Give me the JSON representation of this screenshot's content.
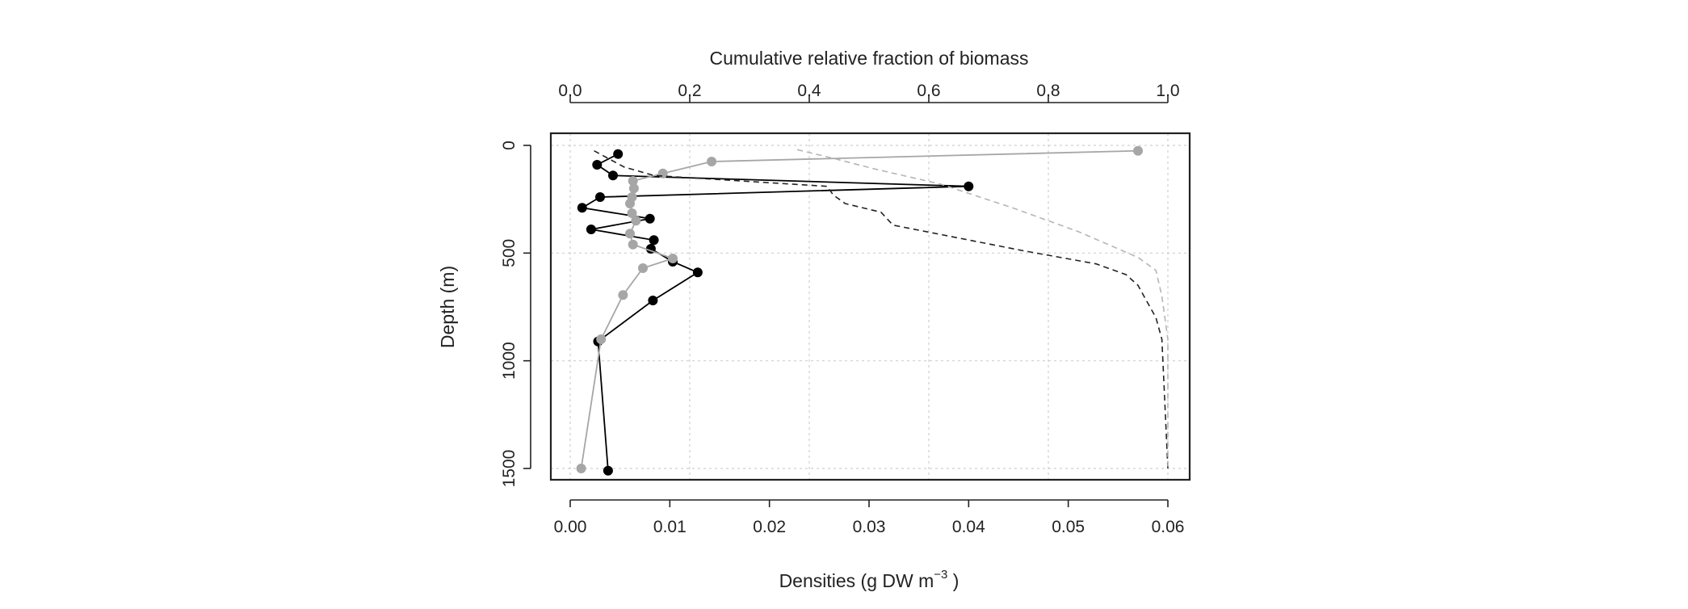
{
  "chart_data": {
    "type": "line",
    "title": "",
    "top_axis": {
      "label": "Cumulative relative fraction of biomass",
      "range": [
        0,
        1
      ],
      "ticks": [
        0.0,
        0.2,
        0.4,
        0.6,
        0.8,
        1.0
      ],
      "tick_labels": [
        "0.0",
        "0.2",
        "0.4",
        "0.6",
        "0.8",
        "1.0"
      ]
    },
    "bottom_axis": {
      "label_main": "Densities (g DW  m",
      "label_sup": "−3",
      "label_end": " )",
      "range": [
        0,
        0.06
      ],
      "ticks": [
        0.0,
        0.01,
        0.02,
        0.03,
        0.04,
        0.05,
        0.06
      ],
      "tick_labels": [
        "0.00",
        "0.01",
        "0.02",
        "0.03",
        "0.04",
        "0.05",
        "0.06"
      ]
    },
    "left_axis": {
      "label": "Depth (m)",
      "range": [
        0,
        1500
      ],
      "reversed": true,
      "ticks": [
        0,
        500,
        1000,
        1500
      ],
      "tick_labels": [
        "0",
        "500",
        "1000",
        "1500"
      ]
    },
    "grid": true,
    "series": [
      {
        "style": "density-black",
        "color": "#000000",
        "markers": true,
        "axis": "bottom",
        "points": [
          [
            0.0048,
            40
          ],
          [
            0.0027,
            90
          ],
          [
            0.0043,
            140
          ],
          [
            0.04,
            190
          ],
          [
            0.003,
            240
          ],
          [
            0.0012,
            290
          ],
          [
            0.008,
            340
          ],
          [
            0.0021,
            390
          ],
          [
            0.0084,
            440
          ],
          [
            0.0081,
            480
          ],
          [
            0.0103,
            540
          ],
          [
            0.0128,
            590
          ],
          [
            0.0083,
            720
          ],
          [
            0.0028,
            910
          ],
          [
            0.0038,
            1510
          ]
        ]
      },
      {
        "style": "density-grey",
        "color": "#a6a6a6",
        "markers": true,
        "axis": "bottom",
        "points": [
          [
            0.057,
            25
          ],
          [
            0.0142,
            75
          ],
          [
            0.0093,
            130
          ],
          [
            0.0063,
            165
          ],
          [
            0.0064,
            200
          ],
          [
            0.0062,
            240
          ],
          [
            0.006,
            270
          ],
          [
            0.0062,
            315
          ],
          [
            0.0066,
            350
          ],
          [
            0.006,
            410
          ],
          [
            0.0063,
            460
          ],
          [
            0.0103,
            525
          ],
          [
            0.0073,
            570
          ],
          [
            0.0053,
            695
          ],
          [
            0.0031,
            900
          ],
          [
            0.0011,
            1500
          ]
        ]
      },
      {
        "style": "cumulative-black-dashed",
        "color": "#222222",
        "markers": false,
        "axis": "top",
        "points": [
          [
            0.04,
            25
          ],
          [
            0.09,
            100
          ],
          [
            0.14,
            140
          ],
          [
            0.43,
            190
          ],
          [
            0.44,
            230
          ],
          [
            0.46,
            270
          ],
          [
            0.52,
            310
          ],
          [
            0.54,
            370
          ],
          [
            0.65,
            430
          ],
          [
            0.76,
            490
          ],
          [
            0.88,
            550
          ],
          [
            0.93,
            600
          ],
          [
            0.95,
            650
          ],
          [
            0.96,
            700
          ],
          [
            0.98,
            800
          ],
          [
            0.99,
            900
          ],
          [
            1.0,
            1500
          ]
        ]
      },
      {
        "style": "cumulative-grey-dashed",
        "color": "#b5b5b5",
        "markers": false,
        "axis": "top",
        "points": [
          [
            0.38,
            20
          ],
          [
            0.44,
            60
          ],
          [
            0.51,
            110
          ],
          [
            0.62,
            180
          ],
          [
            0.74,
            290
          ],
          [
            0.85,
            400
          ],
          [
            0.95,
            520
          ],
          [
            0.98,
            580
          ],
          [
            0.99,
            700
          ],
          [
            1.0,
            900
          ],
          [
            1.0,
            1500
          ]
        ]
      }
    ]
  }
}
